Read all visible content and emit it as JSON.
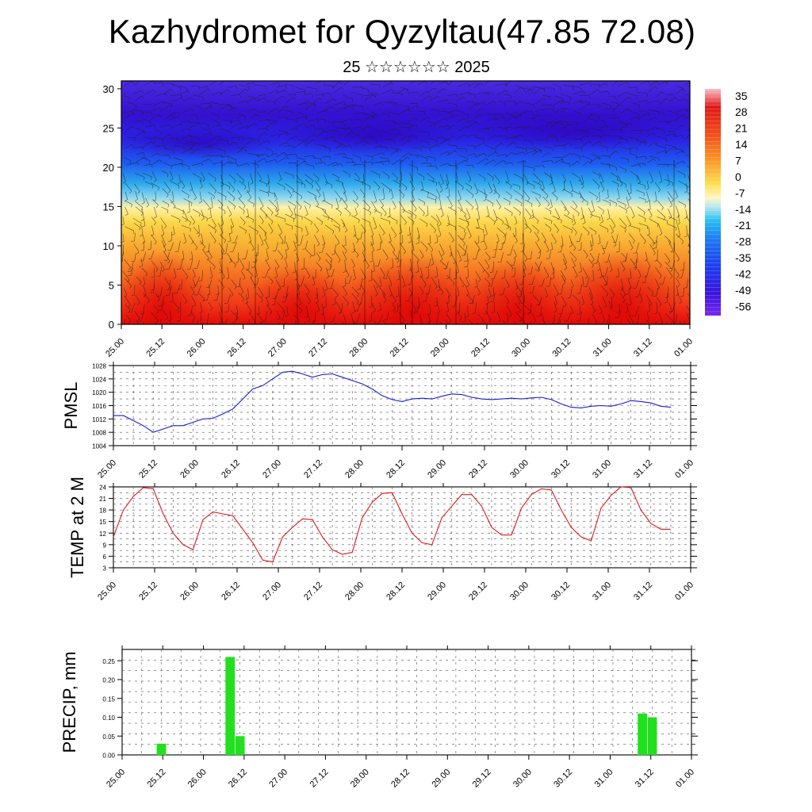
{
  "title": "Kazhydromet for Qyzyltau(47.85 72.08)",
  "subtitle": "25 ☆☆☆☆☆☆ 2025",
  "colors": {
    "pmsl_line": "#1a1adc",
    "temp_line": "#e01818",
    "precip_bar": "#22e01e",
    "frame": "#000000",
    "grid": "#555555"
  },
  "time_labels": [
    "25.00",
    "25.12",
    "26.00",
    "26.12",
    "27.00",
    "27.12",
    "28.00",
    "28.12",
    "29.00",
    "29.12",
    "30.00",
    "30.12",
    "31.00",
    "31.12",
    "01.00"
  ],
  "chart_data": [
    {
      "type": "heatmap",
      "name": "temperature-height-cross-section",
      "x": [
        "25.00",
        "25.12",
        "26.00",
        "26.12",
        "27.00",
        "27.12",
        "28.00",
        "28.12",
        "29.00",
        "29.12",
        "30.00",
        "30.12",
        "31.00",
        "31.12",
        "01.00"
      ],
      "ylim": [
        0,
        31
      ],
      "yticks": [
        "0",
        "5",
        "10",
        "15",
        "20",
        "25",
        "30"
      ],
      "colorbar_labels": [
        "35",
        "28",
        "21",
        "14",
        "7",
        "0",
        "-7",
        "-14",
        "-21",
        "-28",
        "-35",
        "-42",
        "-49",
        "-56"
      ],
      "colorbar_range": [
        -60,
        38
      ],
      "overlay": "wind barbs"
    },
    {
      "type": "line",
      "ylabel": "PMSL",
      "ylim": [
        1004,
        1028
      ],
      "yticks": [
        "1004",
        "1008",
        "1012",
        "1016",
        "1020",
        "1024",
        "1028"
      ],
      "x": [
        0,
        3,
        6,
        9,
        12,
        15,
        18,
        21,
        24,
        27,
        30,
        33,
        36,
        39,
        42,
        45,
        48,
        51,
        54,
        57,
        60,
        63,
        66,
        69,
        72,
        75,
        78,
        81,
        84,
        87,
        90,
        93,
        96,
        99,
        102,
        105,
        108,
        111,
        114,
        117,
        120,
        123,
        126,
        129,
        132,
        135,
        138,
        141,
        144,
        147,
        150,
        153,
        156,
        159,
        162,
        165,
        168
      ],
      "values": [
        1013,
        1013,
        1011.5,
        1010,
        1008,
        1009,
        1010,
        1010,
        1011,
        1012,
        1012.2,
        1013.5,
        1015,
        1018,
        1021,
        1022,
        1024,
        1026,
        1026.3,
        1025.5,
        1024.5,
        1025.3,
        1025.5,
        1024.5,
        1023.5,
        1022.5,
        1021,
        1019,
        1017.8,
        1017.2,
        1018,
        1018.2,
        1018,
        1018.8,
        1019.5,
        1019.3,
        1018.5,
        1018,
        1017.8,
        1018,
        1018.2,
        1018,
        1018.3,
        1018.5,
        1017.8,
        1016.5,
        1015.5,
        1015.3,
        1015.8,
        1016,
        1015.8,
        1016.5,
        1017.5,
        1017.2,
        1016.8,
        1015.8,
        1015.5
      ]
    },
    {
      "type": "line",
      "ylabel": "TEMP at 2 M",
      "ylim": [
        3,
        24
      ],
      "yticks": [
        "3",
        "6",
        "9",
        "12",
        "15",
        "18",
        "21",
        "24"
      ],
      "x": [
        0,
        3,
        6,
        9,
        12,
        15,
        18,
        21,
        24,
        27,
        30,
        33,
        36,
        39,
        42,
        45,
        48,
        51,
        54,
        57,
        60,
        63,
        66,
        69,
        72,
        75,
        78,
        81,
        84,
        87,
        90,
        93,
        96,
        99,
        102,
        105,
        108,
        111,
        114,
        117,
        120,
        123,
        126,
        129,
        132,
        135,
        138,
        141,
        144,
        147,
        150,
        153,
        156,
        159,
        162,
        165,
        168
      ],
      "values": [
        11,
        18,
        21.5,
        23.8,
        23.5,
        17,
        12,
        9,
        7.7,
        15.5,
        17.5,
        17,
        16.5,
        13,
        9.5,
        5,
        4.5,
        11,
        13.5,
        15.7,
        15.5,
        11,
        7.7,
        6.5,
        7,
        16,
        20,
        22.3,
        22.5,
        17,
        12,
        9.5,
        9,
        16,
        19,
        22,
        22,
        19,
        13.5,
        11.5,
        11.5,
        18.5,
        22,
        23.5,
        23.2,
        18,
        13.5,
        11,
        10,
        18.5,
        21.8,
        24,
        23.8,
        18,
        14.5,
        13,
        13
      ]
    },
    {
      "type": "bar",
      "ylabel": "PRECIP, mm",
      "ylim": [
        0,
        0.28
      ],
      "yticks": [
        "0.00",
        "0.05",
        "0.10",
        "0.15",
        "0.20",
        "0.25"
      ],
      "bars": [
        {
          "x": 12,
          "value": 0.03
        },
        {
          "x": 33,
          "value": 0.26
        },
        {
          "x": 36,
          "value": 0.05
        },
        {
          "x": 159,
          "value": 0.11
        },
        {
          "x": 162,
          "value": 0.1
        }
      ]
    }
  ]
}
